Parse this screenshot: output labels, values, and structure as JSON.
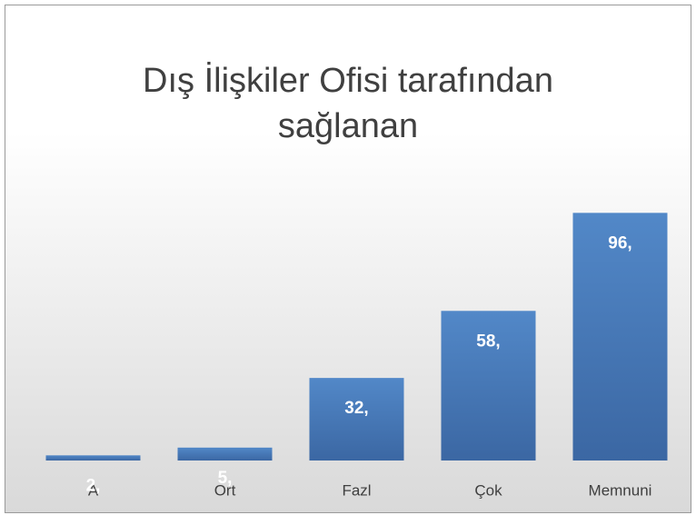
{
  "chart_data": {
    "type": "bar",
    "title": "Dış İlişkiler Ofisi tarafından sağlanan",
    "categories": [
      "A",
      "Ort",
      "Fazl",
      "Çok",
      "Memnuni"
    ],
    "values": [
      2,
      5,
      32,
      58,
      96
    ],
    "value_labels": [
      "2,",
      "5,",
      "32,",
      "58,",
      "96,"
    ],
    "color": "#4a7ab8",
    "ylim": [
      0,
      100
    ]
  }
}
